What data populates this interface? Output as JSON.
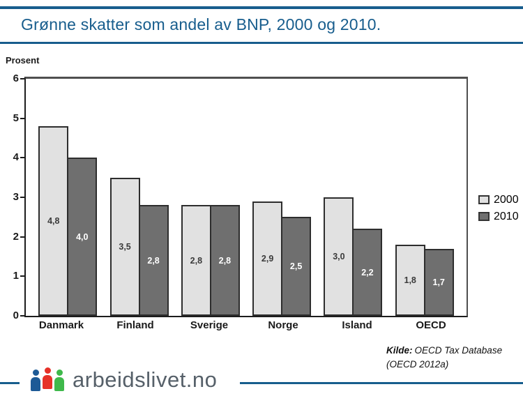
{
  "header": {
    "title": "Grønne skatter som andel av BNP, 2000 og 2010."
  },
  "chart_data": {
    "type": "bar",
    "title": "Grønne skatter som andel av BNP, 2000 og 2010.",
    "ylabel": "Prosent",
    "xlabel": "",
    "categories": [
      "Danmark",
      "Finland",
      "Sverige",
      "Norge",
      "Island",
      "OECD"
    ],
    "series": [
      {
        "name": "2000",
        "values": [
          4.8,
          3.5,
          2.8,
          2.9,
          3.0,
          1.8
        ],
        "labels": [
          "4,8",
          "3,5",
          "2,8",
          "2,9",
          "3,0",
          "1,8"
        ],
        "color": "#e1e1e1",
        "label_color": "#3a3a3a"
      },
      {
        "name": "2010",
        "values": [
          4.0,
          2.8,
          2.8,
          2.5,
          2.2,
          1.7
        ],
        "labels": [
          "4,0",
          "2,8",
          "2,8",
          "2,5",
          "2,2",
          "1,7"
        ],
        "color": "#6f6f6f",
        "label_color": "#ffffff"
      }
    ],
    "ylim": [
      0,
      6
    ],
    "yticks": [
      0,
      1,
      2,
      3,
      4,
      5,
      6
    ],
    "grid": false,
    "legend_position": "right"
  },
  "source": {
    "label": "Kilde:",
    "line1": "OECD Tax Database",
    "line2": "(OECD 2012a)"
  },
  "footer": {
    "brand": "arbeidslivet.no",
    "logo_people": [
      {
        "name": "person-icon-blue",
        "color": "#1d5a96",
        "raised": false
      },
      {
        "name": "person-icon-red",
        "color": "#e63128",
        "raised": true
      },
      {
        "name": "person-icon-green",
        "color": "#3fb94b",
        "raised": false
      }
    ]
  },
  "colors": {
    "accent_blue": "#175d8d",
    "bar_2000": "#e1e1e1",
    "bar_2010": "#6f6f6f",
    "logo_text": "#566069"
  }
}
